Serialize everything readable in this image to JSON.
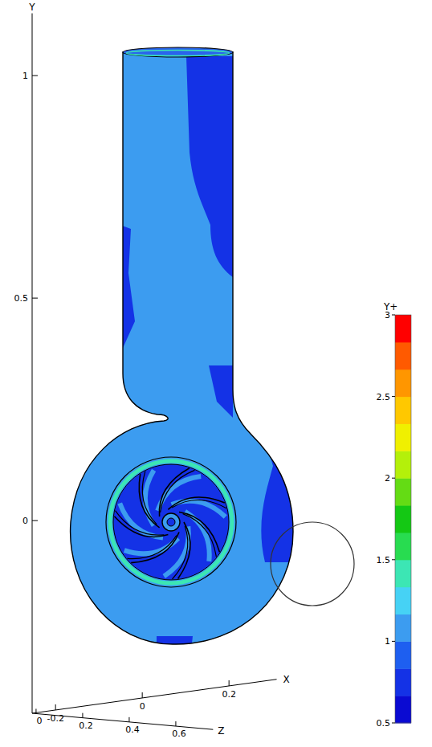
{
  "chart_data": {
    "type": "contour",
    "x_label": "X",
    "y_label": "Y",
    "z_label": "Z",
    "xlim": [
      -0.254,
      0.31
    ],
    "xticks": [
      -0.2,
      0,
      0.2
    ],
    "ylim": [
      -0.433,
      1.14
    ],
    "yticks": [
      0,
      0.5,
      1
    ],
    "zlim": [
      -0.017,
      0.76
    ],
    "zticks": [
      0,
      0.2,
      0.4,
      0.6
    ],
    "zone_values": [
      1.05,
      0.75,
      1.4
    ],
    "colorbar": {
      "title": "Y+",
      "range": [
        0.5,
        3
      ],
      "ticks": [
        0.5,
        1,
        1.5,
        2,
        2.5,
        3
      ],
      "colors": [
        "#0a0ad2",
        "#1432e6",
        "#1e5ff0",
        "#3c9cf0",
        "#46d2f5",
        "#3ce6b4",
        "#28dc50",
        "#14c814",
        "#64dc14",
        "#b4f00a",
        "#f0f000",
        "#ffc800",
        "#ff9600",
        "#ff5a00",
        "#ff0000"
      ]
    }
  }
}
